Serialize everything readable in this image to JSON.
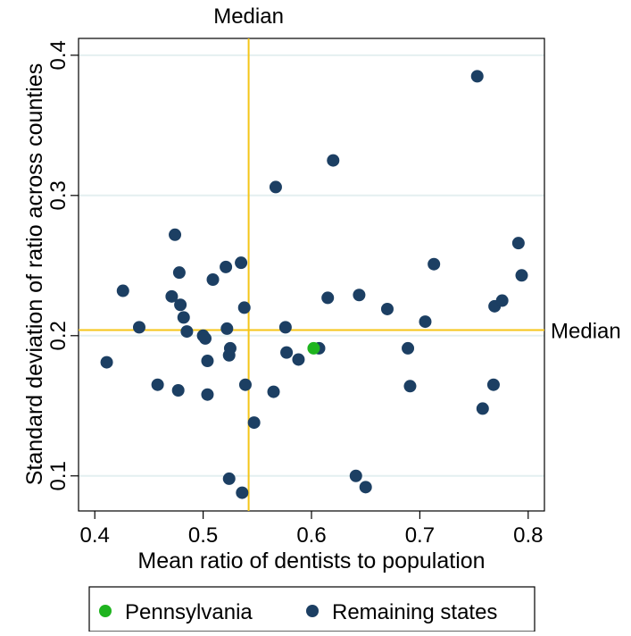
{
  "chart_data": {
    "type": "scatter",
    "title": "",
    "xlabel": "Mean ratio of dentists to population",
    "ylabel": "Standard deviation of ratio across counties",
    "xlim": [
      0.385,
      0.815
    ],
    "ylim": [
      0.075,
      0.412
    ],
    "x_ticks": [
      {
        "value": 0.4,
        "label": "0.4"
      },
      {
        "value": 0.5,
        "label": "0.5"
      },
      {
        "value": 0.6,
        "label": "0.6"
      },
      {
        "value": 0.7,
        "label": "0.7"
      },
      {
        "value": 0.8,
        "label": "0.8"
      }
    ],
    "y_ticks": [
      {
        "value": 0.1,
        "label": "0.1"
      },
      {
        "value": 0.2,
        "label": "0.2"
      },
      {
        "value": 0.3,
        "label": "0.3"
      },
      {
        "value": 0.4,
        "label": "0.4"
      }
    ],
    "grid": "horizontal",
    "grid_color": "#e4eff0",
    "median_color": "#f5c518",
    "median_x": {
      "value": 0.542,
      "label": "Median"
    },
    "median_y": {
      "value": 0.204,
      "label": "Median"
    },
    "legend_position": "bottom",
    "series": [
      {
        "name": "Pennsylvania",
        "color": "#1fb41f",
        "points": [
          [
            0.602,
            0.191
          ]
        ]
      },
      {
        "name": "Remaining states",
        "color": "#1c3f63",
        "points": [
          [
            0.411,
            0.181
          ],
          [
            0.426,
            0.232
          ],
          [
            0.441,
            0.206
          ],
          [
            0.458,
            0.165
          ],
          [
            0.471,
            0.228
          ],
          [
            0.474,
            0.272
          ],
          [
            0.477,
            0.161
          ],
          [
            0.478,
            0.245
          ],
          [
            0.479,
            0.222
          ],
          [
            0.482,
            0.213
          ],
          [
            0.485,
            0.203
          ],
          [
            0.5,
            0.2
          ],
          [
            0.502,
            0.198
          ],
          [
            0.504,
            0.158
          ],
          [
            0.504,
            0.182
          ],
          [
            0.509,
            0.24
          ],
          [
            0.521,
            0.249
          ],
          [
            0.522,
            0.205
          ],
          [
            0.524,
            0.186
          ],
          [
            0.524,
            0.098
          ],
          [
            0.525,
            0.191
          ],
          [
            0.535,
            0.252
          ],
          [
            0.536,
            0.088
          ],
          [
            0.538,
            0.22
          ],
          [
            0.539,
            0.165
          ],
          [
            0.547,
            0.138
          ],
          [
            0.565,
            0.16
          ],
          [
            0.567,
            0.306
          ],
          [
            0.576,
            0.206
          ],
          [
            0.577,
            0.188
          ],
          [
            0.588,
            0.183
          ],
          [
            0.607,
            0.191
          ],
          [
            0.615,
            0.227
          ],
          [
            0.62,
            0.325
          ],
          [
            0.641,
            0.1
          ],
          [
            0.644,
            0.229
          ],
          [
            0.65,
            0.092
          ],
          [
            0.67,
            0.219
          ],
          [
            0.689,
            0.191
          ],
          [
            0.691,
            0.164
          ],
          [
            0.705,
            0.21
          ],
          [
            0.713,
            0.251
          ],
          [
            0.753,
            0.385
          ],
          [
            0.758,
            0.148
          ],
          [
            0.768,
            0.165
          ],
          [
            0.769,
            0.221
          ],
          [
            0.776,
            0.225
          ],
          [
            0.791,
            0.266
          ],
          [
            0.794,
            0.243
          ]
        ]
      }
    ]
  }
}
